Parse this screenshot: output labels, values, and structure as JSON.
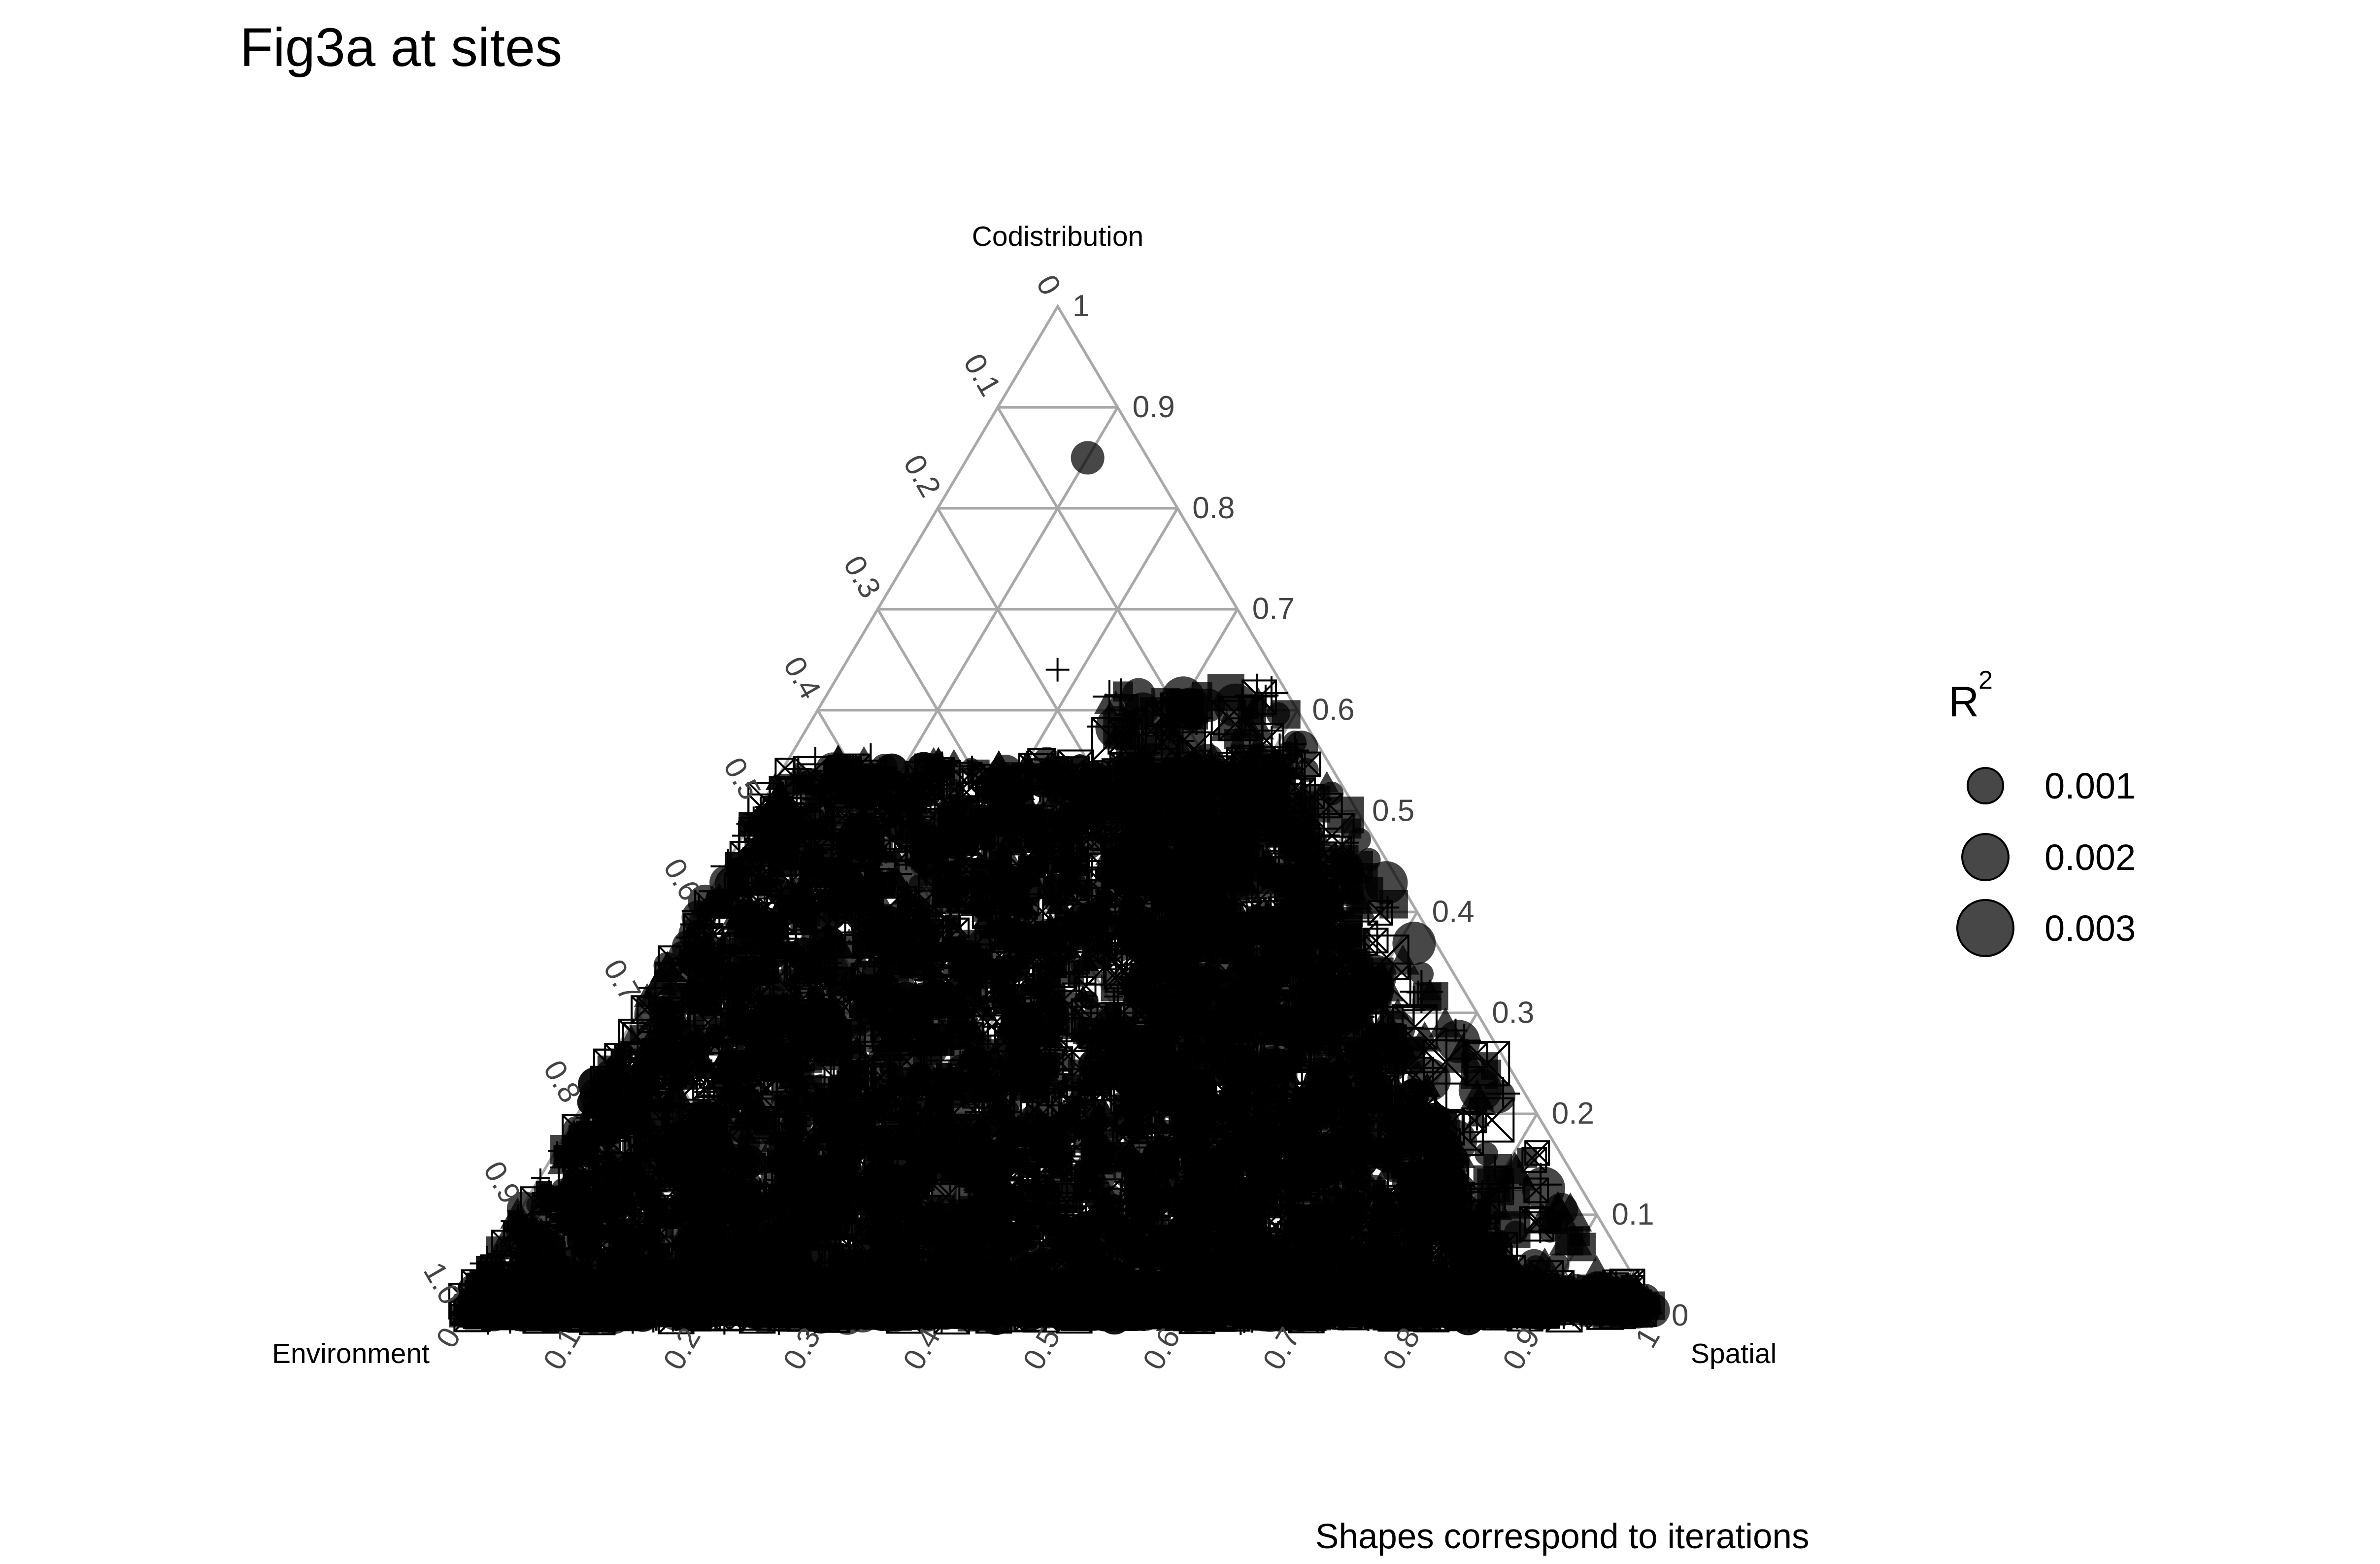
{
  "title": "Fig3a at sites",
  "caption": "Shapes correspond to iterations",
  "colors": {
    "points": "#000000",
    "grid": "#a8a8a8",
    "ticks": "#444444"
  },
  "chart_data": {
    "type": "scatter",
    "subtype": "ternary",
    "title": "Fig3a at sites",
    "axes": {
      "top": "Codistribution",
      "left": "Environment",
      "right": "Spatial"
    },
    "axis_range": [
      0,
      1
    ],
    "grid": true,
    "ticks": {
      "codistribution": [
        "0",
        "0.1",
        "0.2",
        "0.3",
        "0.4",
        "0.5",
        "0.6",
        "0.7",
        "0.8",
        "0.9",
        "1"
      ],
      "spatial": [
        "0",
        "0.1",
        "0.2",
        "0.3",
        "0.4",
        "0.5",
        "0.6",
        "0.7",
        "0.8",
        "0.9",
        "1.0"
      ],
      "environment": [
        "0",
        "0.1",
        "0.2",
        "0.3",
        "0.4",
        "0.5",
        "0.6",
        "0.7",
        "0.8",
        "0.9",
        "1"
      ]
    },
    "legend": {
      "title": "R",
      "title_superscript": "2",
      "placement": "right",
      "size_entries": [
        {
          "label": "0.001",
          "value": 0.001
        },
        {
          "label": "0.002",
          "value": 0.002
        },
        {
          "label": "0.003",
          "value": 0.003
        }
      ]
    },
    "shape_encoding": "iteration",
    "shapes": [
      "circle",
      "triangle",
      "square",
      "plus",
      "boxed-x"
    ],
    "point_count_estimate": 12000,
    "series": [
      {
        "name": "",
        "shape": "mixed",
        "description_values": [
          {
            "codistribution": 0.85,
            "spatial": 0.1,
            "r2": 0.002
          },
          {
            "codistribution": 0.02,
            "spatial": 0.96,
            "r2": 0.002
          },
          {
            "codistribution": 0.01,
            "spatial": 0.99,
            "r2": 0.002
          },
          {
            "codistribution": 0.64,
            "spatial": 0.18,
            "r2": 0.001
          },
          {
            "codistribution": 0.6,
            "spatial": 0.3,
            "r2": 0.002
          },
          {
            "codistribution": 0.55,
            "spatial": 0.35,
            "r2": 0.002
          },
          {
            "codistribution": 0.38,
            "spatial": 0.5,
            "r2": 0.003
          },
          {
            "codistribution": 0.1,
            "spatial": 0.8,
            "r2": 0.002
          },
          {
            "codistribution": 0.2,
            "spatial": 0.75,
            "r2": 0.002
          },
          {
            "codistribution": 0.05,
            "spatial": 0.5,
            "r2": 0.002
          },
          {
            "codistribution": 0.3,
            "spatial": 0.35,
            "r2": 0.001
          },
          {
            "codistribution": 0.15,
            "spatial": 0.1,
            "r2": 0.001
          }
        ]
      }
    ]
  }
}
